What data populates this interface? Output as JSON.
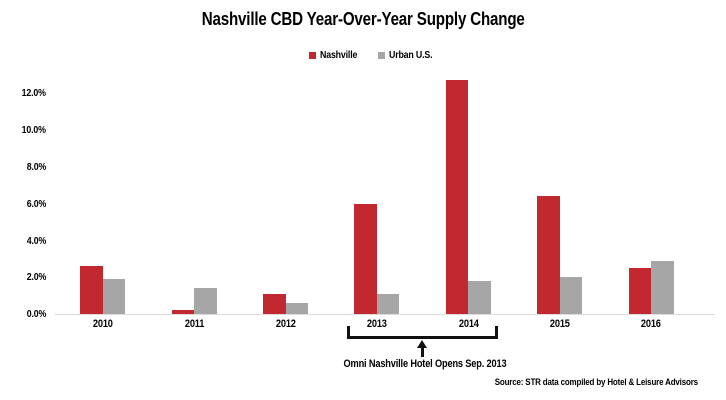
{
  "title": "Nashville CBD Year-Over-Year Supply Change",
  "annotation": {
    "text": "Omni Nashville Hotel Opens Sep. 2013"
  },
  "source": "Source: STR data compiled by Hotel & Leisure Advisors",
  "colors": {
    "nashville_red": "#c1282f",
    "urban_gray": "#a6a6a6",
    "axis_line": "#dcdcdc",
    "text": "#000000"
  },
  "chart_data": {
    "type": "bar",
    "title": "Nashville CBD Year-Over-Year Supply Change",
    "categories": [
      "2010",
      "2011",
      "2012",
      "2013",
      "2014",
      "2015",
      "2016"
    ],
    "series": [
      {
        "name": "Nashville",
        "color": "#c1282f",
        "values": [
          2.6,
          0.2,
          1.1,
          6.0,
          12.7,
          6.4,
          2.5
        ]
      },
      {
        "name": "Urban U.S.",
        "color": "#a6a6a6",
        "values": [
          1.9,
          1.4,
          0.6,
          1.1,
          1.8,
          2.0,
          2.9
        ]
      }
    ],
    "values_unit": "percent",
    "xlabel": "",
    "ylabel": "",
    "y_ticks": [
      "12.0%",
      "10.0%",
      "8.0%",
      "6.0%",
      "4.0%",
      "2.0%",
      "0.0%"
    ],
    "ylim": [
      0,
      12.8
    ],
    "grid": false,
    "legend_position": "top-center",
    "annotation": "Omni Nashville Hotel Opens Sep. 2013 (bracket spanning 2013-2014 with up arrow)"
  }
}
